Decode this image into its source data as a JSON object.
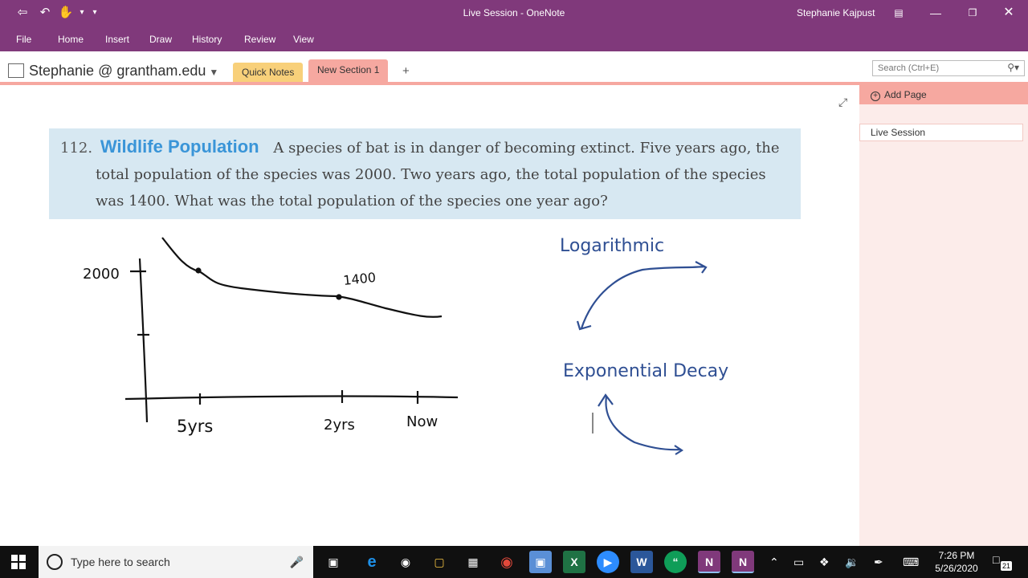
{
  "window": {
    "title": "Live Session  -  OneNote",
    "user": "Stephanie Kajpust"
  },
  "quick_access": {
    "back_icon": "back-arrow-icon",
    "undo_icon": "undo-icon",
    "touch_icon": "touch-mode-icon",
    "customize_icon": "customize-chevron-icon"
  },
  "window_controls": {
    "ribbon_display_icon": "ribbon-display-icon",
    "minimize_icon": "minimize-icon",
    "restore_icon": "restore-icon",
    "close_icon": "close-icon"
  },
  "menu": [
    "File",
    "Home",
    "Insert",
    "Draw",
    "History",
    "Review",
    "View"
  ],
  "notebook": {
    "name": "Stephanie @ grantham.edu"
  },
  "sections": {
    "quick_notes": "Quick Notes",
    "new_section": "New Section 1",
    "add": "+"
  },
  "search": {
    "placeholder": "Search (Ctrl+E)"
  },
  "problem": {
    "number": "112.",
    "title": "Wildlife Population",
    "text": "A species of bat is in danger of becoming extinct. Five years ago, the total population of the species was 2000. Two years ago, the total population of the species was 1400. What was the total population of the species one year ago?"
  },
  "ink_notes": {
    "label_2000": "2000",
    "label_1400": "1400",
    "label_5yrs": "5yrs",
    "label_2yrs": "2yrs",
    "label_now": "Now",
    "logarithmic": "Logarithmic",
    "exponential_decay": "Exponential Decay"
  },
  "pages_pane": {
    "add_page": "Add Page",
    "pages": [
      "Live Session"
    ]
  },
  "taskbar": {
    "search_placeholder": "Type here to search",
    "apps": [
      {
        "icon": "task-view-icon"
      },
      {
        "icon": "edge-icon"
      },
      {
        "icon": "paint-icon"
      },
      {
        "icon": "file-explorer-icon"
      },
      {
        "icon": "store-icon"
      },
      {
        "icon": "chrome-icon"
      },
      {
        "icon": "photos-icon"
      },
      {
        "icon": "excel-icon"
      },
      {
        "icon": "zoom-icon"
      },
      {
        "icon": "word-icon"
      },
      {
        "icon": "hangouts-icon"
      },
      {
        "icon": "onenote-icon"
      },
      {
        "icon": "onenote-icon-2"
      }
    ],
    "time": "7:26 PM",
    "date": "5/26/2020",
    "notification_count": "21"
  }
}
